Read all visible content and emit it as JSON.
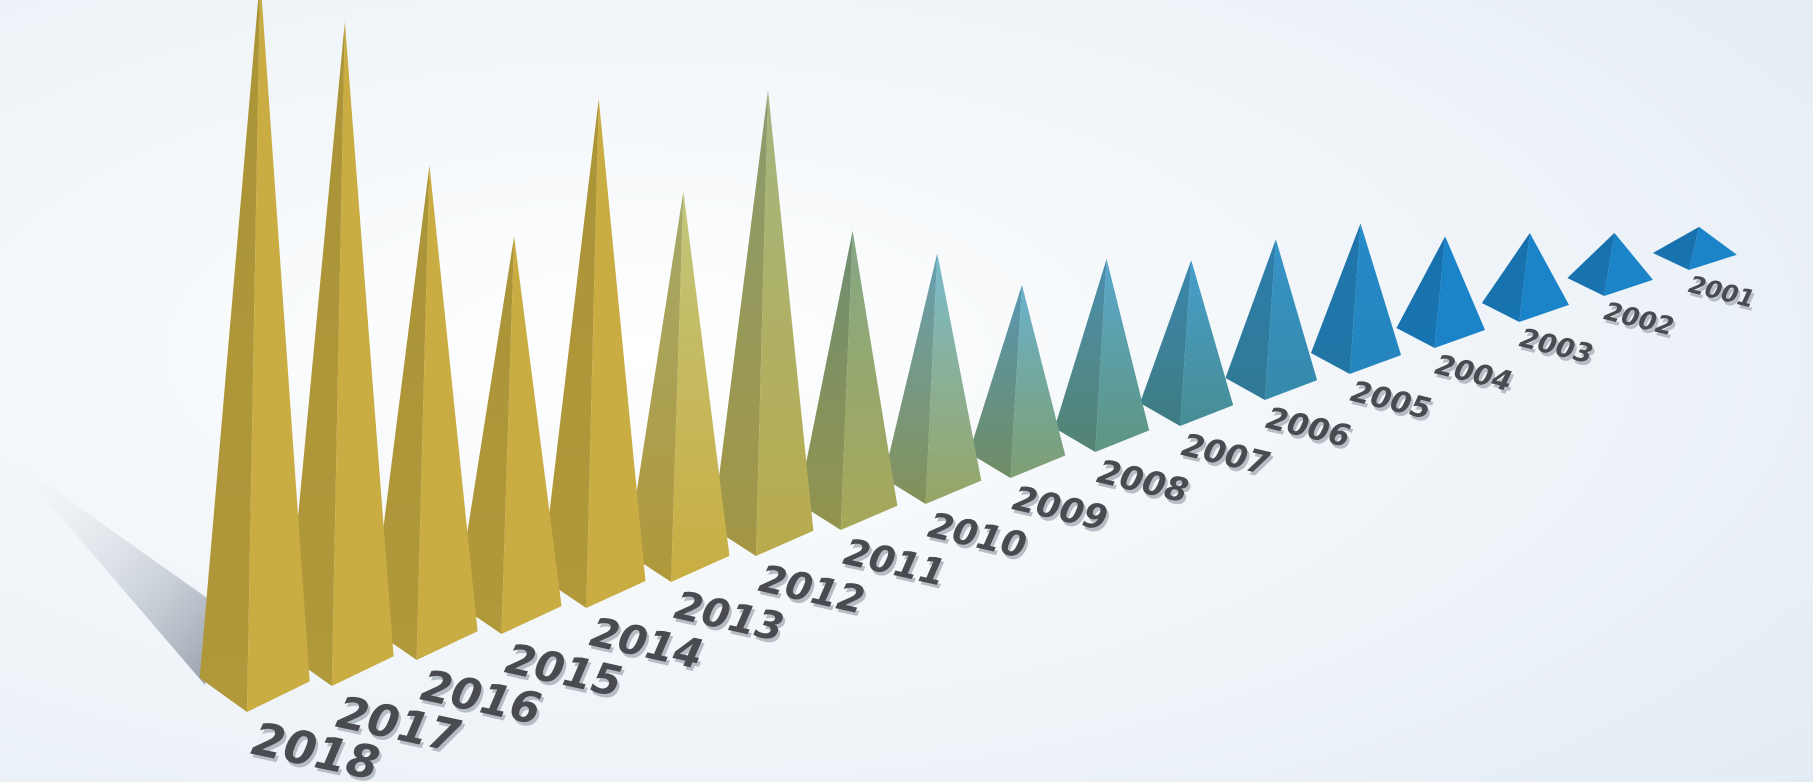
{
  "chart_data": {
    "type": "bar",
    "style": "3d-pyramid",
    "title": "",
    "xlabel": "",
    "ylabel": "",
    "grid": false,
    "legend": "none",
    "categories": [
      "2018",
      "2017",
      "2016",
      "2015",
      "2014",
      "2013",
      "2012",
      "2011",
      "2010",
      "2009",
      "2008",
      "2007",
      "2006",
      "2005",
      "2004",
      "2003",
      "2002",
      "2001"
    ],
    "values": [
      100,
      92,
      69,
      56,
      75,
      58,
      72,
      46,
      39,
      30,
      31,
      27,
      27,
      26,
      19,
      15,
      10,
      6
    ],
    "colors": {
      "gold": "#c9ad42",
      "gold_dark": "#b39a33",
      "green": "#8da46a",
      "teal": "#4f8f8b",
      "blue": "#1b84c9",
      "blue_dark": "#0f6eb5",
      "label": "#4a4b50",
      "background": "#eef3f8"
    }
  }
}
